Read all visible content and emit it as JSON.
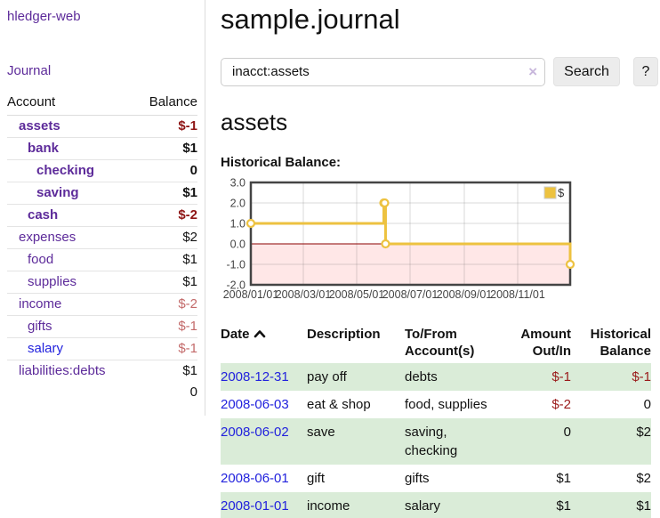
{
  "app": {
    "brand": "hledger-web"
  },
  "sidebar": {
    "nav_journal": "Journal",
    "accounts_table": {
      "headers": [
        "Account",
        "Balance"
      ],
      "rows": [
        {
          "account": "assets",
          "balance": "$-1",
          "indent": 1,
          "bold": true,
          "blue": false
        },
        {
          "account": "bank",
          "balance": "$1",
          "indent": 2,
          "bold": true,
          "blue": false
        },
        {
          "account": "checking",
          "balance": "0",
          "indent": 3,
          "bold": true,
          "blue": false
        },
        {
          "account": "saving",
          "balance": "$1",
          "indent": 3,
          "bold": true,
          "blue": false
        },
        {
          "account": "cash",
          "balance": "$-2",
          "indent": 2,
          "bold": true,
          "blue": false
        },
        {
          "account": "expenses",
          "balance": "$2",
          "indent": 1,
          "bold": false,
          "blue": false
        },
        {
          "account": "food",
          "balance": "$1",
          "indent": 2,
          "bold": false,
          "blue": false
        },
        {
          "account": "supplies",
          "balance": "$1",
          "indent": 2,
          "bold": false,
          "blue": false
        },
        {
          "account": "income",
          "balance": "$-2",
          "indent": 1,
          "bold": false,
          "blue": false
        },
        {
          "account": "gifts",
          "balance": "$-1",
          "indent": 2,
          "bold": false,
          "blue": false
        },
        {
          "account": "salary",
          "balance": "$-1",
          "indent": 2,
          "bold": false,
          "blue": true
        },
        {
          "account": "liabilities:debts",
          "balance": "$1",
          "indent": 1,
          "bold": false,
          "blue": false
        }
      ],
      "total": "0"
    }
  },
  "header": {
    "title": "sample.journal"
  },
  "search": {
    "value": "inacct:assets",
    "clear_icon": "×",
    "button_label": "Search",
    "help_label": "?"
  },
  "account_page": {
    "title": "assets",
    "chart_label": "Historical Balance:"
  },
  "chart_data": {
    "type": "line",
    "title": "Historical Balance:",
    "style": "steps",
    "series": [
      {
        "name": "$",
        "color": "#edc240",
        "points": [
          {
            "date": "2008-01-01",
            "value": 1
          },
          {
            "date": "2008-06-01",
            "value": 2
          },
          {
            "date": "2008-06-02",
            "value": 2
          },
          {
            "date": "2008-06-03",
            "value": 0
          },
          {
            "date": "2008-12-31",
            "value": -1
          }
        ]
      }
    ],
    "x_range": [
      "2008-01-01",
      "2008-12-31"
    ],
    "x_ticks": [
      "2008/01/01",
      "2008/03/01",
      "2008/05/01",
      "2008/07/01",
      "2008/09/01",
      "2008/11/01"
    ],
    "y_ticks": [
      3.0,
      2.0,
      1.0,
      0.0,
      -1.0,
      -2.0
    ],
    "ylim": [
      -2,
      3
    ],
    "grid": true,
    "negative_region_color": "#ffe7e7",
    "zero_line_color": "#8b0000",
    "border_color": "#444444",
    "legend": {
      "label": "$",
      "position": "top-right"
    }
  },
  "register_table": {
    "headers": {
      "date": "Date",
      "description": "Description",
      "accounts": "To/From Account(s)",
      "amount": "Amount Out/In",
      "balance": "Historical Balance"
    },
    "rows": [
      {
        "date": "2008-12-31",
        "description": "pay off",
        "accounts": "debts",
        "amount": "$-1",
        "balance": "$-1"
      },
      {
        "date": "2008-06-03",
        "description": "eat & shop",
        "accounts": "food, supplies",
        "amount": "$-2",
        "balance": "0"
      },
      {
        "date": "2008-06-02",
        "description": "save",
        "accounts": "saving, checking",
        "amount": "0",
        "balance": "$2"
      },
      {
        "date": "2008-06-01",
        "description": "gift",
        "accounts": "gifts",
        "amount": "$1",
        "balance": "$2"
      },
      {
        "date": "2008-01-01",
        "description": "income",
        "accounts": "salary",
        "amount": "$1",
        "balance": "$1"
      }
    ]
  }
}
